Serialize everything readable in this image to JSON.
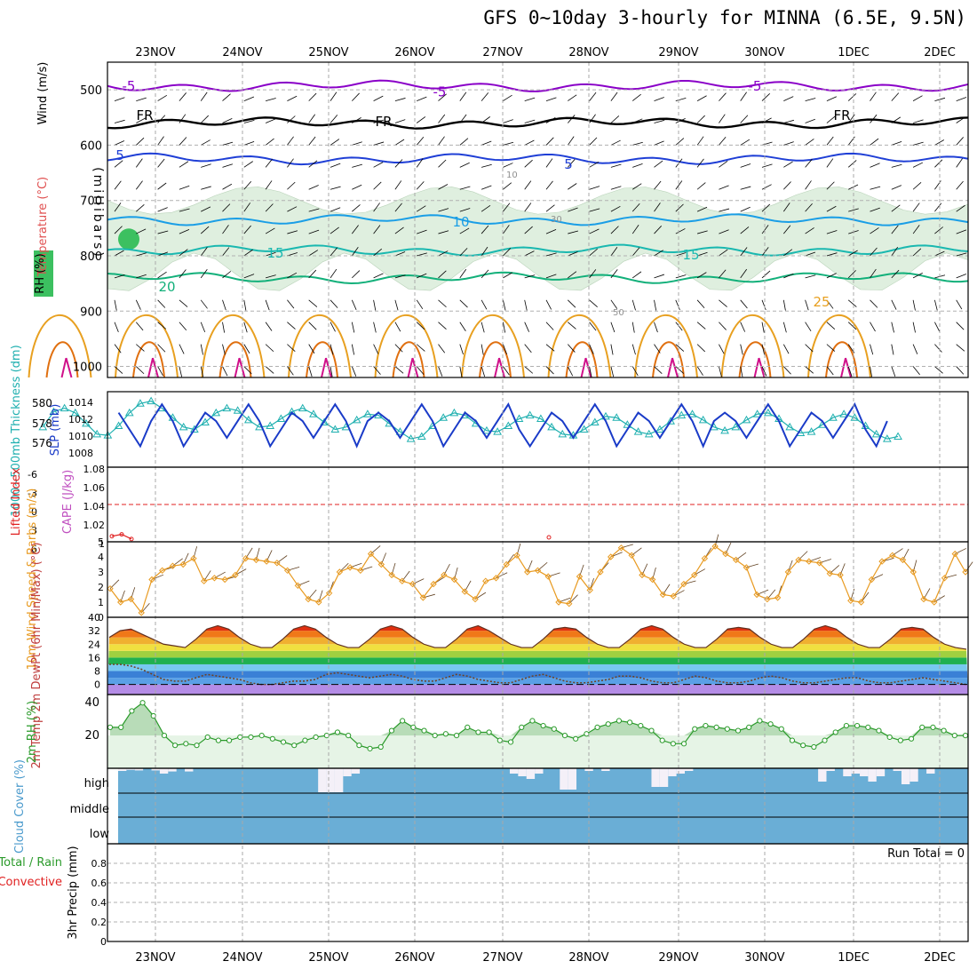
{
  "title": "GFS 0~10day 3-hourly for MINNA (6.5E, 9.5N)",
  "dates": [
    "23NOV",
    "24NOV",
    "25NOV",
    "26NOV",
    "27NOV",
    "28NOV",
    "29NOV",
    "30NOV",
    "1DEC",
    "2DEC"
  ],
  "colors": {
    "temp_purple": "#8a00c8",
    "temp_black": "#000000",
    "temp_blue": "#1f3fd6",
    "temp_lightblue": "#1a9ee6",
    "temp_teal": "#1ab8b0",
    "temp_green": "#12b07a",
    "temp_orange": "#e8a020",
    "temp_dkorange": "#e07010",
    "temp_magenta": "#d0108a",
    "rh_fill": "#d8ecd8",
    "wind_barb": "#000000",
    "slp": "#1a3bc8",
    "thickness": "#20b0b0",
    "lifted": "#e02020",
    "cape": "#c050c0",
    "wind_speed": "#e89a20",
    "cloud_bg": "#6aaed6",
    "cloud_bar": "#f4f0f8",
    "rh2m": "#2a9a2a"
  },
  "chart_data": [
    {
      "type": "heatmap",
      "title": "Temperature / Wind / RH",
      "ylabel": "(millibars)",
      "panel_labels": [
        "Temperature (°C)",
        "Wind (m/s)",
        "RH (%)"
      ],
      "y_ticks": [
        500,
        600,
        700,
        800,
        900,
        1000
      ],
      "ylim": [
        450,
        1020
      ],
      "contour_labels": [
        {
          "text": "-5",
          "color": "temp_purple",
          "series": "-5 isotherm"
        },
        {
          "text": "FR",
          "color": "temp_black",
          "series": "freezing level"
        },
        {
          "text": "5",
          "color": "temp_blue",
          "series": "5 isotherm"
        },
        {
          "text": "10",
          "color": "temp_lightblue",
          "series": "10 isotherm"
        },
        {
          "text": "15",
          "color": "temp_teal",
          "series": "15 isotherm"
        },
        {
          "text": "20",
          "color": "temp_green",
          "series": "20 isotherm"
        },
        {
          "text": "25",
          "color": "temp_orange",
          "series": "25 isotherm"
        }
      ],
      "isotherms": [
        {
          "name": "-5",
          "level": 493
        },
        {
          "name": "FR",
          "level": 560
        },
        {
          "name": "5",
          "level": 625
        },
        {
          "name": "10",
          "level": 735
        },
        {
          "name": "15",
          "level": 790
        },
        {
          "name": "20",
          "level": 840
        }
      ],
      "rh_labels": [
        "10",
        "30",
        "50"
      ]
    },
    {
      "type": "line",
      "title": "1000~500mb Thickness (dm) / SLP (mb)",
      "ylabel_left": "1000~500mb Thickness (dm)",
      "ylabel_right": "SLP (mb)",
      "left_ticks": [
        "580",
        "578",
        "576"
      ],
      "right_ticks": [
        "1014",
        "1012",
        "1010",
        "1008"
      ],
      "series": [
        {
          "name": "SLP",
          "values": [
            1011,
            1009,
            1011,
            1013,
            1014,
            1012,
            1009,
            1012,
            1013,
            1011,
            1009,
            1012,
            1014,
            1012,
            1009,
            1011,
            1013,
            1012,
            1010,
            1012,
            1014,
            1012,
            1009,
            1011,
            1013,
            1012,
            1010,
            1012,
            1014,
            1012,
            1009,
            1012,
            1013,
            1012,
            1010,
            1012,
            1014,
            1012,
            1009,
            1011,
            1013,
            1012,
            1010,
            1012,
            1014,
            1011,
            1009,
            1011,
            1013,
            1012,
            1010,
            1012,
            1014,
            1012,
            1009,
            1011,
            1013,
            1012,
            1010,
            1012,
            1014,
            1012,
            1009,
            1012,
            1013,
            1012,
            1010,
            1012,
            1014,
            1012,
            1009,
            1011,
            1013,
            1012,
            1010,
            1012,
            1014,
            1011,
            1009,
            1012
          ]
        },
        {
          "name": "Thickness",
          "values": [
            578.2,
            579.5,
            579.8,
            579.4,
            578.5,
            577.6,
            577.5,
            578.3,
            579.4,
            580.2,
            580.4,
            579.8,
            579.0,
            578.2,
            578.0,
            578.6,
            579.4,
            579.8,
            579.6,
            578.8,
            578.2,
            578.3,
            578.9,
            579.5,
            579.8,
            579.3,
            578.6,
            578.0,
            578.2,
            578.8,
            579.3,
            579.2,
            578.5,
            577.8,
            577.2,
            577.4,
            578.3,
            579.0,
            579.4,
            579.2,
            578.5,
            577.9,
            577.8,
            578.3,
            578.9,
            579.2,
            578.9,
            578.2,
            577.6,
            577.5,
            578.0,
            578.6,
            579.1,
            579.0,
            578.4,
            577.8,
            577.6,
            578.0,
            578.7,
            579.2,
            579.3,
            578.8,
            578.2,
            577.9,
            578.2,
            578.8,
            579.3,
            579.4,
            578.9,
            578.2,
            577.7,
            577.8,
            578.4,
            579.0,
            579.3,
            579.0,
            578.3,
            577.6,
            577.2,
            577.4
          ]
        }
      ]
    },
    {
      "type": "line",
      "title": "Lifted Index / CAPE (J/kg)",
      "ylabel_left": "Lifted Index",
      "ylabel_right": "CAPE (J/kg)",
      "left_ticks": [
        "-6",
        "-3",
        "0",
        "3",
        "6"
      ],
      "right_ticks": [
        "1.08",
        "1.06",
        "1.04",
        "1.02",
        "1"
      ],
      "series": [
        {
          "name": "CAPE",
          "values": [
            1.006,
            1.008,
            1.003
          ]
        },
        {
          "name": "Lifted Index",
          "values": [
            0
          ]
        }
      ]
    },
    {
      "type": "line",
      "title": "10m Wind Speed & Barbs (m/s)",
      "ylabel": "10m Wind Speed & Barbs (m/s)",
      "y_ticks": [
        "1",
        "2",
        "3",
        "4"
      ],
      "ylim": [
        0,
        5
      ],
      "series": [
        {
          "name": "Wind Speed",
          "values": [
            1.9,
            1.0,
            1.2,
            0.3,
            2.5,
            3.1,
            3.4,
            3.5,
            3.9,
            2.4,
            2.6,
            2.5,
            2.8,
            3.9,
            3.8,
            3.7,
            3.6,
            3.1,
            2.1,
            1.2,
            1.0,
            1.6,
            3.0,
            3.3,
            3.1,
            4.2,
            3.5,
            2.8,
            2.4,
            2.2,
            1.3,
            2.2,
            2.8,
            2.5,
            1.7,
            1.2,
            2.4,
            2.6,
            3.5,
            4.1,
            3.0,
            3.1,
            2.7,
            1.0,
            0.9,
            2.7,
            1.8,
            3.0,
            4.0,
            4.6,
            4.1,
            2.8,
            2.5,
            1.5,
            1.4,
            2.2,
            2.8,
            3.9,
            4.7,
            4.2,
            3.8,
            3.3,
            1.5,
            1.2,
            1.3,
            3.0,
            3.8,
            3.7,
            3.6,
            2.9,
            2.8,
            1.1,
            1.0,
            2.5,
            3.7,
            4.1,
            3.8,
            3.0,
            1.2,
            1.0,
            2.6,
            4.2,
            3.0
          ]
        }
      ]
    },
    {
      "type": "area",
      "title": "2m Temp / 2m DewPt (6hr Min/Max) (°C)",
      "ylabel": "2m Temp 2m DewPt (6hr Min/Max) (°C)",
      "y_ticks": [
        "40",
        "32",
        "24",
        "16",
        "8",
        "0"
      ],
      "ylim": [
        -6,
        40
      ],
      "series": [
        {
          "name": "2m Temp",
          "values": [
            28,
            32,
            33,
            30,
            27,
            24,
            23,
            22,
            27,
            33,
            35,
            33,
            28,
            24,
            22,
            22,
            27,
            33,
            35,
            33,
            28,
            24,
            22,
            22,
            27,
            33,
            35,
            33,
            28,
            24,
            22,
            22,
            27,
            33,
            35,
            32,
            28,
            24,
            22,
            22,
            27,
            33,
            34,
            33,
            28,
            24,
            22,
            22,
            27,
            33,
            35,
            33,
            28,
            24,
            22,
            22,
            27,
            33,
            34,
            33,
            28,
            24,
            22,
            22,
            27,
            33,
            35,
            33,
            28,
            24,
            22,
            22,
            27,
            33,
            34,
            33,
            28,
            24,
            22,
            21
          ]
        },
        {
          "name": "2m DewPt",
          "values": [
            12,
            12,
            11,
            9,
            6,
            3,
            2,
            2,
            4,
            6,
            5,
            4,
            3,
            1,
            0,
            0,
            1,
            2,
            2,
            3,
            6,
            7,
            6,
            5,
            4,
            5,
            6,
            5,
            3,
            2,
            2,
            4,
            6,
            5,
            3,
            2,
            1,
            1,
            3,
            5,
            6,
            4,
            2,
            1,
            1,
            2,
            3,
            5,
            5,
            4,
            2,
            1,
            1,
            3,
            5,
            4,
            2,
            1,
            1,
            2,
            4,
            5,
            4,
            2,
            1,
            1,
            2,
            3,
            4,
            4,
            2,
            1,
            1,
            2,
            3,
            4,
            3,
            2,
            1,
            0
          ]
        }
      ]
    },
    {
      "type": "area",
      "title": "2m RH (%)",
      "ylabel": "2m RH (%)",
      "y_ticks": [
        "40",
        "20"
      ],
      "ylim": [
        0,
        45
      ],
      "series": [
        {
          "name": "2m RH",
          "values": [
            25,
            25,
            35,
            40,
            32,
            20,
            14,
            15,
            14,
            19,
            17,
            17,
            19,
            19,
            20,
            18,
            16,
            14,
            17,
            19,
            20,
            22,
            20,
            14,
            12,
            13,
            23,
            29,
            25,
            23,
            20,
            21,
            20,
            25,
            22,
            22,
            17,
            16,
            25,
            29,
            26,
            24,
            20,
            18,
            21,
            25,
            27,
            29,
            28,
            26,
            23,
            17,
            15,
            15,
            24,
            26,
            25,
            24,
            23,
            25,
            29,
            27,
            24,
            17,
            14,
            13,
            17,
            22,
            26,
            26,
            25,
            23,
            19,
            17,
            18,
            25,
            25,
            23,
            20,
            20
          ]
        }
      ]
    },
    {
      "type": "bar",
      "title": "Cloud Cover (%)",
      "ylabel": "Cloud Cover (%)",
      "y_ticks": [
        "high",
        "middle",
        "low"
      ],
      "series": [
        {
          "name": "high",
          "values": [
            5,
            3,
            4,
            0,
            4,
            10,
            6,
            0,
            6,
            0,
            0,
            0,
            0,
            0,
            0,
            0,
            0,
            0,
            0,
            0,
            0,
            0,
            0,
            0,
            45,
            45,
            45,
            15,
            10,
            0,
            0,
            0,
            0,
            0,
            0,
            0,
            0,
            0,
            0,
            0,
            0,
            0,
            0,
            0,
            0,
            0,
            0,
            10,
            15,
            20,
            10,
            0,
            0,
            40,
            40,
            0,
            5,
            0,
            5,
            0,
            0,
            0,
            0,
            0,
            35,
            35,
            15,
            10,
            5,
            0,
            0,
            0,
            0,
            0,
            0,
            0,
            0,
            0,
            0,
            0,
            0,
            0,
            0,
            0,
            25,
            5,
            0,
            15,
            10,
            15,
            25,
            15,
            0,
            5,
            30,
            25,
            0,
            10,
            0,
            0,
            0,
            0
          ]
        }
      ]
    },
    {
      "type": "bar",
      "title": "3hr Precip (mm)",
      "ylabel": "3hr Precip (mm)",
      "panel_labels": [
        "Total / Rain",
        "Convective"
      ],
      "y_ticks": [
        "0",
        "0.2",
        "0.4",
        "0.6",
        "0.8"
      ],
      "ylim": [
        0,
        1
      ],
      "annotation": "Run Total = 0",
      "series": [
        {
          "name": "Total / Rain",
          "values": []
        },
        {
          "name": "Convective",
          "values": []
        }
      ]
    }
  ]
}
